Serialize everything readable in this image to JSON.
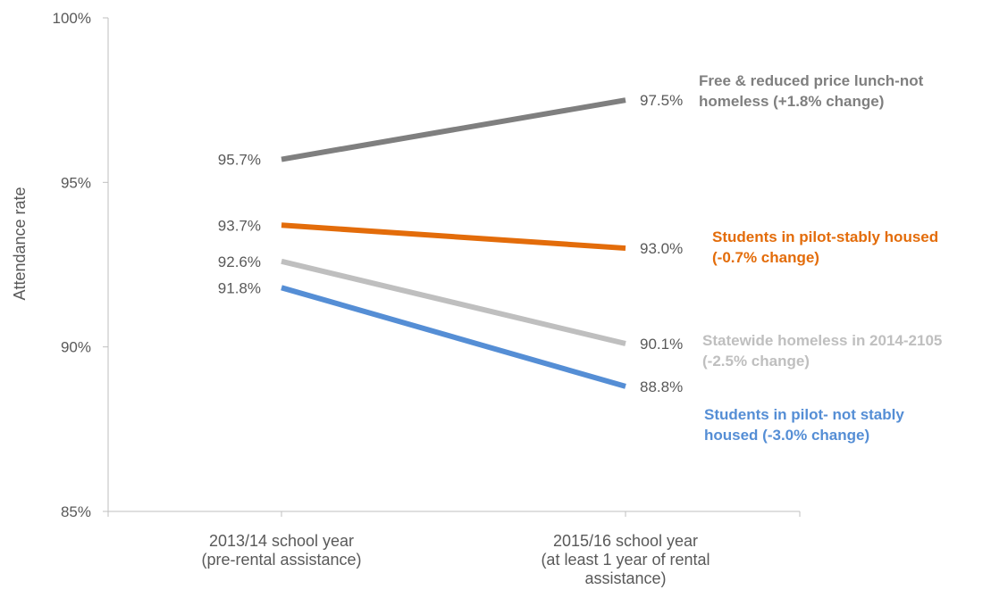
{
  "chart_data": {
    "type": "line",
    "title": "",
    "xlabel": "",
    "ylabel": "Attendance rate",
    "ylim": [
      85,
      100
    ],
    "yticks": [
      {
        "value": 85,
        "label": "85%"
      },
      {
        "value": 90,
        "label": "90%"
      },
      {
        "value": 95,
        "label": "95%"
      },
      {
        "value": 100,
        "label": "100%"
      }
    ],
    "categories": [
      [
        "2013/14 school year",
        "(pre-rental assistance)"
      ],
      [
        "2015/16 school year",
        "(at least 1 year of rental",
        "assistance)"
      ]
    ],
    "grid": false,
    "series": [
      {
        "name_lines": [
          "Free & reduced price lunch-not",
          "homeless (+1.8% change)"
        ],
        "values": [
          95.7,
          97.5
        ],
        "value_labels": [
          "95.7%",
          "97.5%"
        ],
        "color": "#7f7f7f"
      },
      {
        "name_lines": [
          "Students in pilot-stably housed",
          "(-0.7% change)"
        ],
        "values": [
          93.7,
          93.0
        ],
        "value_labels": [
          "93.7%",
          "93.0%"
        ],
        "color": "#e36c0a"
      },
      {
        "name_lines": [
          "Statewide homeless in 2014-2105",
          "(-2.5% change)"
        ],
        "values": [
          92.6,
          90.1
        ],
        "value_labels": [
          "92.6%",
          "90.1%"
        ],
        "color": "#bfbfbf"
      },
      {
        "name_lines": [
          "Students in pilot- not stably",
          "housed (-3.0% change)"
        ],
        "values": [
          91.8,
          88.8
        ],
        "value_labels": [
          "91.8%",
          "88.8%"
        ],
        "color": "#558ed5"
      }
    ]
  }
}
